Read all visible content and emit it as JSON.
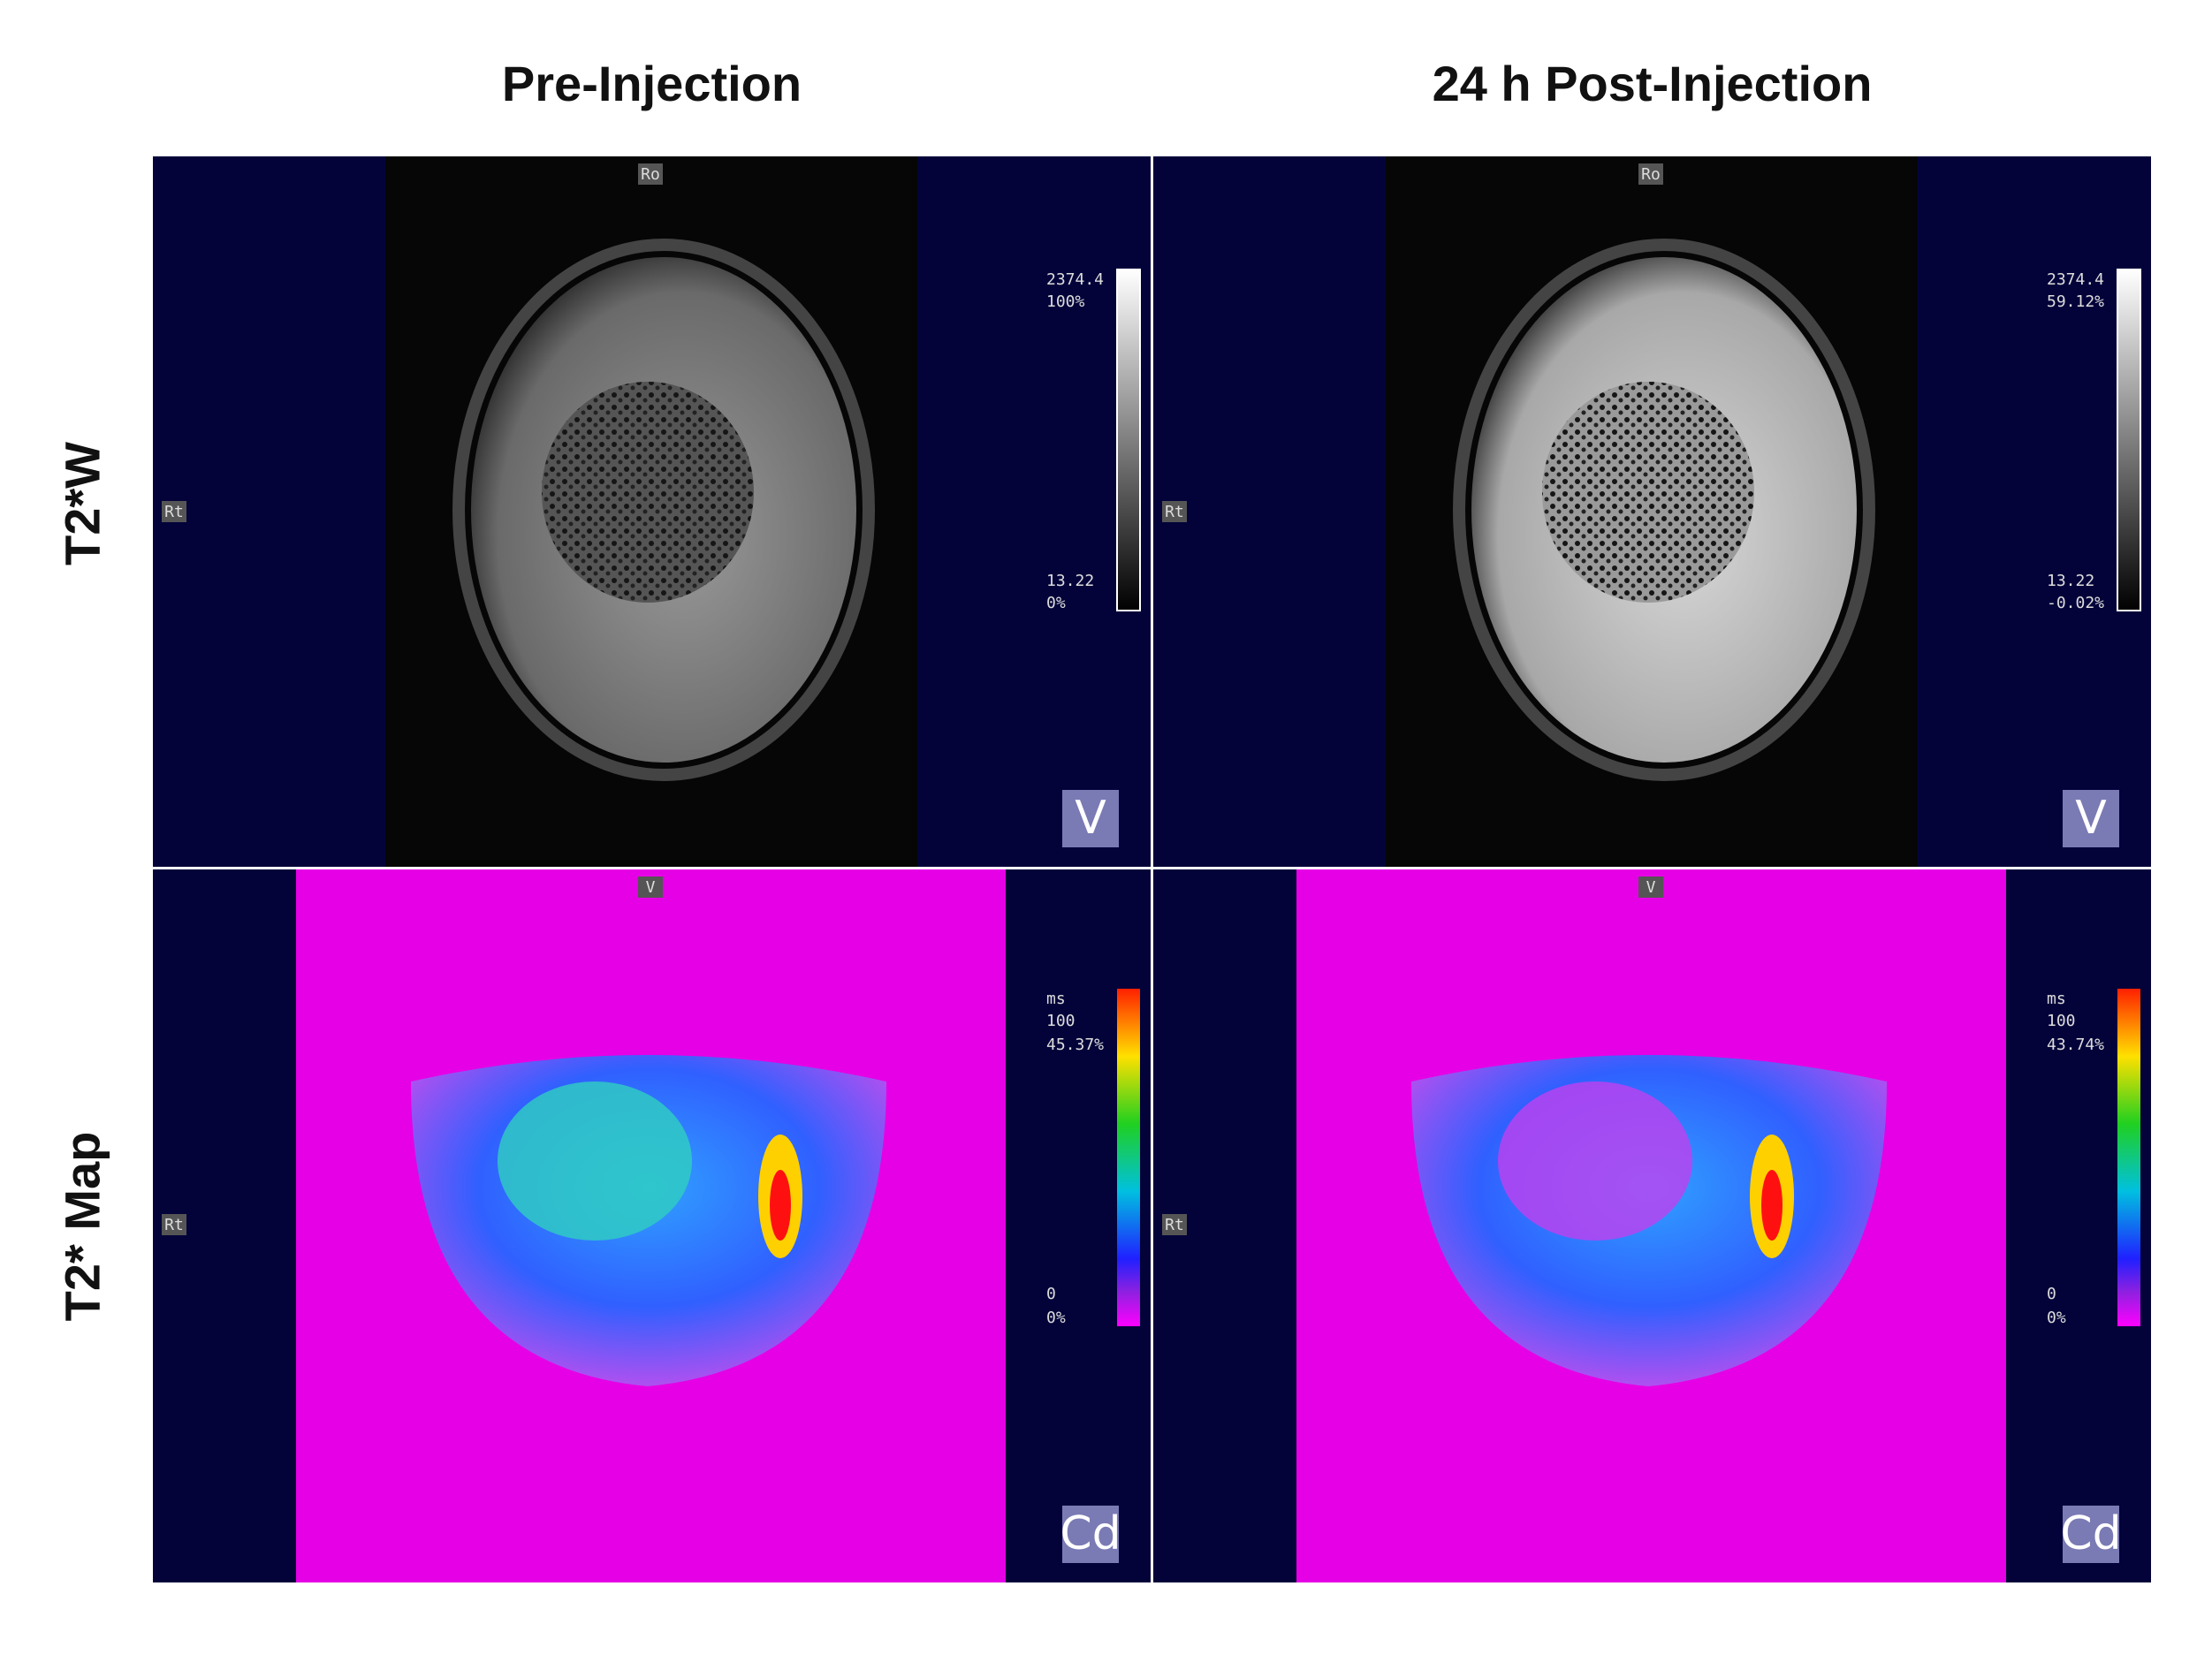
{
  "columns": [
    "Pre-Injection",
    "24 h Post-Injection"
  ],
  "rows": [
    "T2*W",
    "T2* Map"
  ],
  "panels": [
    [
      {
        "top_marker": "Ro",
        "side_marker": "Rt",
        "scale_max": "2374.4",
        "scale_max_pct": "100%",
        "scale_min": "13.22",
        "scale_min_pct": "0%",
        "view": "V"
      },
      {
        "top_marker": "Ro",
        "side_marker": "Rt",
        "scale_max": "2374.4",
        "scale_max_pct": "59.12%",
        "scale_min": "13.22",
        "scale_min_pct": "-0.02%",
        "view": "V"
      }
    ],
    [
      {
        "top_marker": "V",
        "side_marker": "Rt",
        "unit": "ms",
        "scale_max": "100",
        "scale_max_pct": "45.37%",
        "scale_min": "0",
        "scale_min_pct": "0%",
        "view": "Cd"
      },
      {
        "top_marker": "V",
        "side_marker": "Rt",
        "unit": "ms",
        "scale_max": "100",
        "scale_max_pct": "43.74%",
        "scale_min": "0",
        "scale_min_pct": "0%",
        "view": "Cd"
      }
    ]
  ]
}
